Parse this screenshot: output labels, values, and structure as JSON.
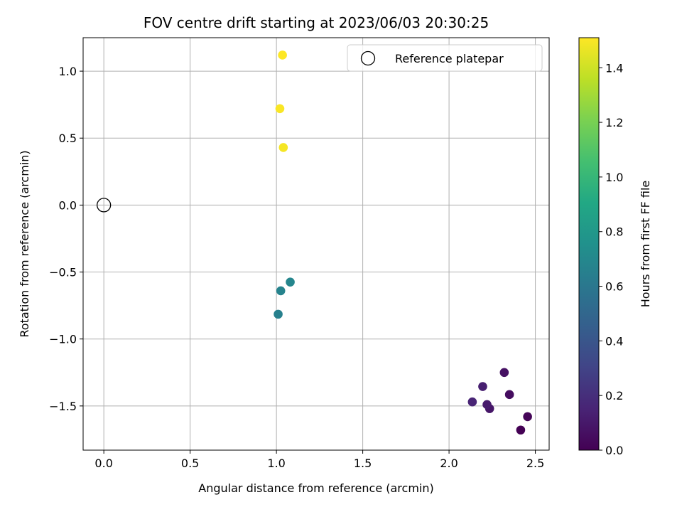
{
  "chart_data": {
    "type": "scatter",
    "title": "FOV centre drift starting at 2023/06/03 20:30:25",
    "xlabel": "Angular distance from reference (arcmin)",
    "ylabel": "Rotation from reference (arcmin)",
    "xlim": [
      -0.12,
      2.58
    ],
    "ylim": [
      -1.83,
      1.25
    ],
    "xticks": [
      0.0,
      0.5,
      1.0,
      1.5,
      2.0,
      2.5
    ],
    "xtick_labels": [
      "0.0",
      "0.5",
      "1.0",
      "1.5",
      "2.0",
      "2.5"
    ],
    "yticks": [
      1.0,
      0.5,
      0.0,
      -0.5,
      -1.0,
      -1.5
    ],
    "ytick_labels": [
      "1.0",
      "0.5",
      "0.0",
      "−0.5",
      "−1.0",
      "−1.5"
    ],
    "grid": true,
    "legend": {
      "position": "top-right",
      "entries": [
        "Reference platepar"
      ]
    },
    "reference_point": {
      "name": "Reference platepar",
      "x": 0.0,
      "y": 0.0
    },
    "colorbar": {
      "label": "Hours from first FF file",
      "colormap": "viridis",
      "range": [
        0.0,
        1.51
      ],
      "ticks": [
        0.0,
        0.2,
        0.4,
        0.6,
        0.8,
        1.0,
        1.2,
        1.4
      ],
      "tick_labels": [
        "0.0",
        "0.2",
        "0.4",
        "0.6",
        "0.8",
        "1.0",
        "1.2",
        "1.4"
      ]
    },
    "points": [
      {
        "x": 2.415,
        "y": -1.68,
        "c": 0.0
      },
      {
        "x": 2.455,
        "y": -1.58,
        "c": 0.02
      },
      {
        "x": 2.35,
        "y": -1.415,
        "c": 0.05
      },
      {
        "x": 2.32,
        "y": -1.25,
        "c": 0.07
      },
      {
        "x": 2.235,
        "y": -1.52,
        "c": 0.09
      },
      {
        "x": 2.22,
        "y": -1.49,
        "c": 0.11
      },
      {
        "x": 2.195,
        "y": -1.355,
        "c": 0.13
      },
      {
        "x": 2.135,
        "y": -1.47,
        "c": 0.15
      },
      {
        "x": 1.01,
        "y": -0.815,
        "c": 0.65
      },
      {
        "x": 1.025,
        "y": -0.64,
        "c": 0.67
      },
      {
        "x": 1.08,
        "y": -0.575,
        "c": 0.69
      },
      {
        "x": 1.04,
        "y": 0.43,
        "c": 1.49
      },
      {
        "x": 1.02,
        "y": 0.72,
        "c": 1.5
      },
      {
        "x": 1.035,
        "y": 1.12,
        "c": 1.51
      }
    ]
  }
}
